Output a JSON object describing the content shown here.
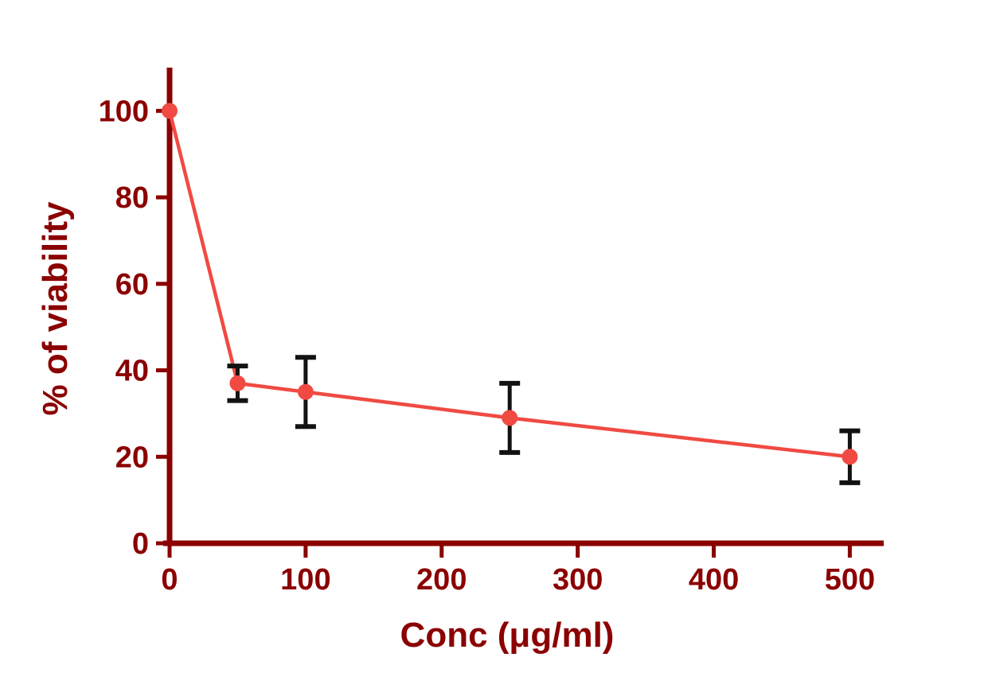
{
  "figure": {
    "background": "#FFFFFF"
  },
  "chart_data": {
    "type": "line",
    "title": "",
    "xlabel": "Conc (μg/ml)",
    "ylabel": "% of viability",
    "series": [
      {
        "name": "viability",
        "x": [
          0,
          50,
          100,
          250,
          500
        ],
        "y": [
          100,
          37,
          35,
          29,
          20
        ],
        "yerr": [
          0,
          4,
          8,
          8,
          6
        ]
      }
    ],
    "xticks": [
      0,
      100,
      200,
      300,
      400,
      500
    ],
    "yticks": [
      0,
      20,
      40,
      60,
      80,
      100
    ],
    "xlim": [
      0,
      522
    ],
    "ylim": [
      0,
      110
    ],
    "grid": false,
    "legend": "none",
    "marker": "circle",
    "colors": {
      "axis": "#8B0000",
      "labels": "#8B0000",
      "line": "#F04A42",
      "marker": "#F04A42",
      "error_bar": "#121212",
      "background": "#FFFFFF"
    }
  }
}
